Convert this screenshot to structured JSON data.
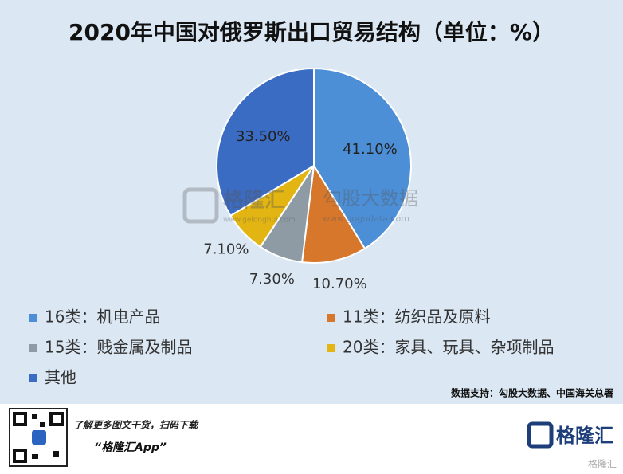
{
  "chart_data": {
    "type": "pie",
    "title": "2020年中国对俄罗斯出口贸易结构（单位：%）",
    "categories": [
      "16类：机电产品",
      "11类：纺织品及原料",
      "15类：贱金属及制品",
      "20类：家具、玩具、杂项制品",
      "其他"
    ],
    "values": [
      41.1,
      10.7,
      7.3,
      7.1,
      33.5
    ],
    "value_labels": [
      "41.10%",
      "10.70%",
      "7.30%",
      "7.10%",
      "33.50%"
    ],
    "colors": [
      "#4c8fd6",
      "#d6772c",
      "#8e9ba4",
      "#e2b512",
      "#3b6cc3"
    ],
    "source": "数据支持：勾股大数据、中国海关总署"
  },
  "watermarks": {
    "brand": "格隆汇",
    "brand_url": "www.gelonghui.com",
    "data_brand": "勾股大数据",
    "data_url": "www.gogudata.com"
  },
  "footer": {
    "prompt": "了解更多图文干货，扫码下载",
    "app": "“格隆汇App”",
    "logo": "格隆汇",
    "corner": "格隆汇"
  }
}
